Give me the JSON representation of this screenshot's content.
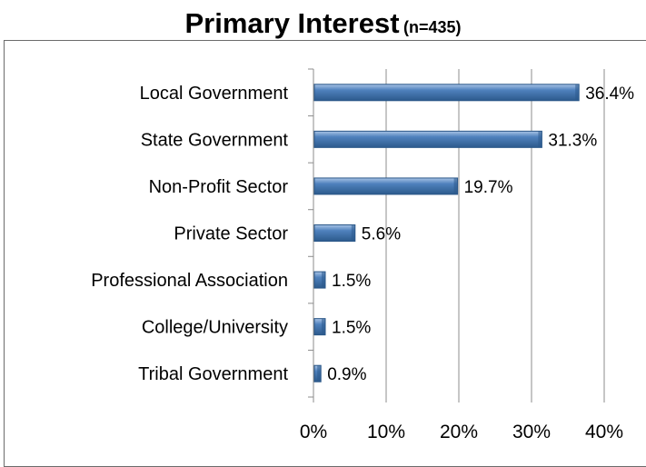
{
  "chart_data": {
    "type": "bar",
    "orientation": "horizontal",
    "title": "Primary Interest",
    "subtitle": "(n=435)",
    "categories": [
      "Local Government",
      "State Government",
      "Non-Profit Sector",
      "Private Sector",
      "Professional Association",
      "College/University",
      "Tribal Government"
    ],
    "values": [
      36.4,
      31.3,
      19.7,
      5.6,
      1.5,
      1.5,
      0.9
    ],
    "data_labels": [
      "36.4%",
      "31.3%",
      "19.7%",
      "5.6%",
      "1.5%",
      "1.5%",
      "0.9%"
    ],
    "xlim": [
      0,
      40
    ],
    "xticks": [
      "0%",
      "10%",
      "20%",
      "30%",
      "40%"
    ],
    "xlabel": "",
    "ylabel": "",
    "grid": "vertical",
    "bar_color": "#4f81bd",
    "bar_color_dark": "#2c5a8c",
    "bar_color_light": "#a9c4e6"
  }
}
